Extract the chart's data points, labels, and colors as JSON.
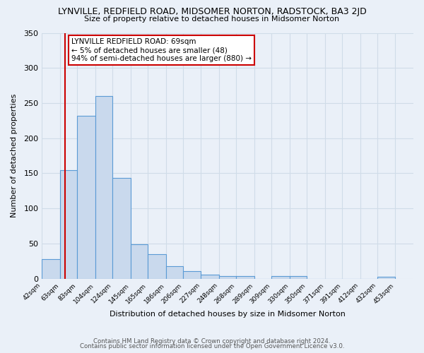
{
  "title": "LYNVILLE, REDFIELD ROAD, MIDSOMER NORTON, RADSTOCK, BA3 2JD",
  "subtitle": "Size of property relative to detached houses in Midsomer Norton",
  "xlabel": "Distribution of detached houses by size in Midsomer Norton",
  "ylabel": "Number of detached properties",
  "footer_line1": "Contains HM Land Registry data © Crown copyright and database right 2024.",
  "footer_line2": "Contains public sector information licensed under the Open Government Licence v3.0.",
  "bar_left_edges": [
    42,
    63,
    83,
    104,
    124,
    145,
    165,
    186,
    206,
    227,
    248,
    268,
    289,
    309,
    330,
    350,
    371,
    391,
    412,
    432
  ],
  "bar_widths": [
    21,
    20,
    21,
    20,
    21,
    20,
    21,
    20,
    21,
    21,
    20,
    21,
    20,
    21,
    20,
    21,
    20,
    21,
    20,
    21
  ],
  "bar_heights": [
    28,
    155,
    232,
    260,
    143,
    49,
    35,
    18,
    11,
    6,
    4,
    4,
    0,
    4,
    4,
    0,
    0,
    0,
    0,
    3
  ],
  "tick_labels": [
    "42sqm",
    "63sqm",
    "83sqm",
    "104sqm",
    "124sqm",
    "145sqm",
    "165sqm",
    "186sqm",
    "206sqm",
    "227sqm",
    "248sqm",
    "268sqm",
    "289sqm",
    "309sqm",
    "330sqm",
    "350sqm",
    "371sqm",
    "391sqm",
    "412sqm",
    "432sqm",
    "453sqm"
  ],
  "tick_positions": [
    42,
    63,
    83,
    104,
    124,
    145,
    165,
    186,
    206,
    227,
    248,
    268,
    289,
    309,
    330,
    350,
    371,
    391,
    412,
    432,
    453
  ],
  "bar_facecolor": "#c9d9ed",
  "bar_edgecolor": "#5b9bd5",
  "vline_x": 69,
  "vline_color": "#cc0000",
  "ylim": [
    0,
    350
  ],
  "xlim": [
    42,
    474
  ],
  "annotation_title": "LYNVILLE REDFIELD ROAD: 69sqm",
  "annotation_line2": "← 5% of detached houses are smaller (48)",
  "annotation_line3": "94% of semi-detached houses are larger (880) →",
  "annotation_box_facecolor": "#ffffff",
  "annotation_box_edgecolor": "#cc0000",
  "bg_color": "#eaf0f8",
  "grid_color": "#d0dce8",
  "yticks": [
    0,
    50,
    100,
    150,
    200,
    250,
    300,
    350
  ]
}
